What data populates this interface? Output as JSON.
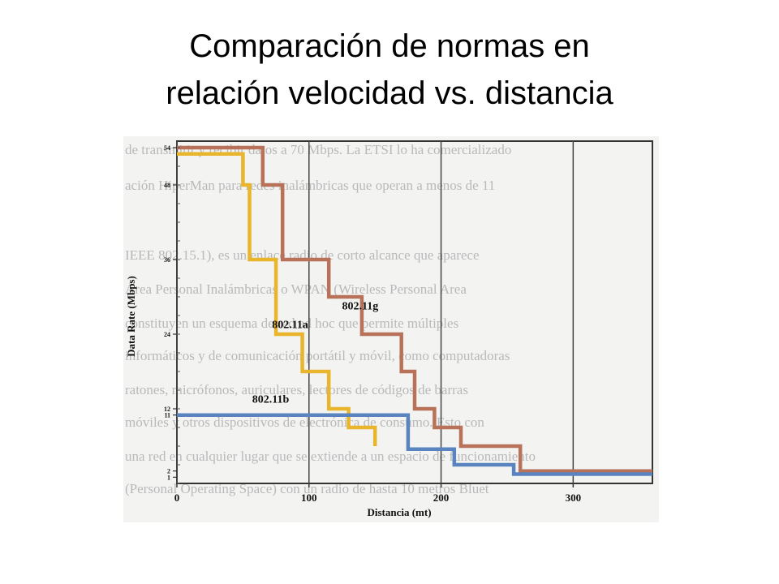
{
  "slide": {
    "title_line1": "Comparación de normas en",
    "title_line2": "relación velocidad vs. distancia"
  },
  "chart_data": {
    "type": "line",
    "step": true,
    "xlabel": "Distancia (mt)",
    "ylabel": "Data Rate (Mbps)",
    "xlim": [
      0,
      360
    ],
    "ylim": [
      0,
      54
    ],
    "x_ticks": [
      0,
      100,
      200,
      300
    ],
    "y_ticks": [
      1,
      2,
      11,
      12,
      24,
      36,
      48,
      54
    ],
    "vertical_grid": [
      0,
      100,
      200,
      300
    ],
    "series": [
      {
        "name": "802.11g",
        "color": "#b8725a",
        "points": [
          [
            0,
            54
          ],
          [
            65,
            54
          ],
          [
            65,
            48
          ],
          [
            80,
            48
          ],
          [
            80,
            36
          ],
          [
            115,
            36
          ],
          [
            115,
            30
          ],
          [
            140,
            30
          ],
          [
            140,
            24
          ],
          [
            170,
            24
          ],
          [
            170,
            18
          ],
          [
            180,
            18
          ],
          [
            180,
            12
          ],
          [
            195,
            12
          ],
          [
            195,
            9
          ],
          [
            215,
            9
          ],
          [
            215,
            6
          ],
          [
            260,
            6
          ],
          [
            260,
            2
          ],
          [
            360,
            2
          ]
        ],
        "label_at": [
          125,
          28
        ]
      },
      {
        "name": "802.11a",
        "color": "#e9b52d",
        "points": [
          [
            0,
            53
          ],
          [
            50,
            53
          ],
          [
            50,
            48
          ],
          [
            55,
            48
          ],
          [
            55,
            36
          ],
          [
            75,
            36
          ],
          [
            75,
            24
          ],
          [
            95,
            24
          ],
          [
            95,
            18
          ],
          [
            115,
            18
          ],
          [
            115,
            12
          ],
          [
            130,
            12
          ],
          [
            130,
            9
          ],
          [
            150,
            9
          ],
          [
            150,
            6
          ]
        ],
        "label_at": [
          72,
          25
        ]
      },
      {
        "name": "802.11b",
        "color": "#5a84c0",
        "points": [
          [
            0,
            11
          ],
          [
            175,
            11
          ],
          [
            175,
            5.5
          ],
          [
            210,
            5.5
          ],
          [
            210,
            3
          ],
          [
            255,
            3
          ],
          [
            255,
            1.5
          ],
          [
            360,
            1.5
          ]
        ],
        "label_at": [
          57,
          13
        ]
      }
    ],
    "background_text": [
      "de transmitir y recibir datos a 70 Mbps. La ETSI lo ha comercializado",
      "ación HiperMan para redes inalámbricas que operan a menos de 11",
      "IEEE 802.15.1), es un enlace radio de corto alcance que aparece",
      "Área Personal Inalámbricas o WPAN (Wireless Personal Area",
      "constituyen un esquema de red ad hoc que permite múltiples",
      "informáticos y de comunicación portátil y móvil, como computadoras",
      "ratones, micrófonos, auriculares, lectores de códigos de barras",
      "móviles y otros dispositivos de electrónica de consumo. Esto con",
      "una red en cualquier lugar que se extiende a un espacio de funcionamiento",
      "(Personal Operating Space) con un radio de hasta 10 metros Bluet"
    ]
  }
}
